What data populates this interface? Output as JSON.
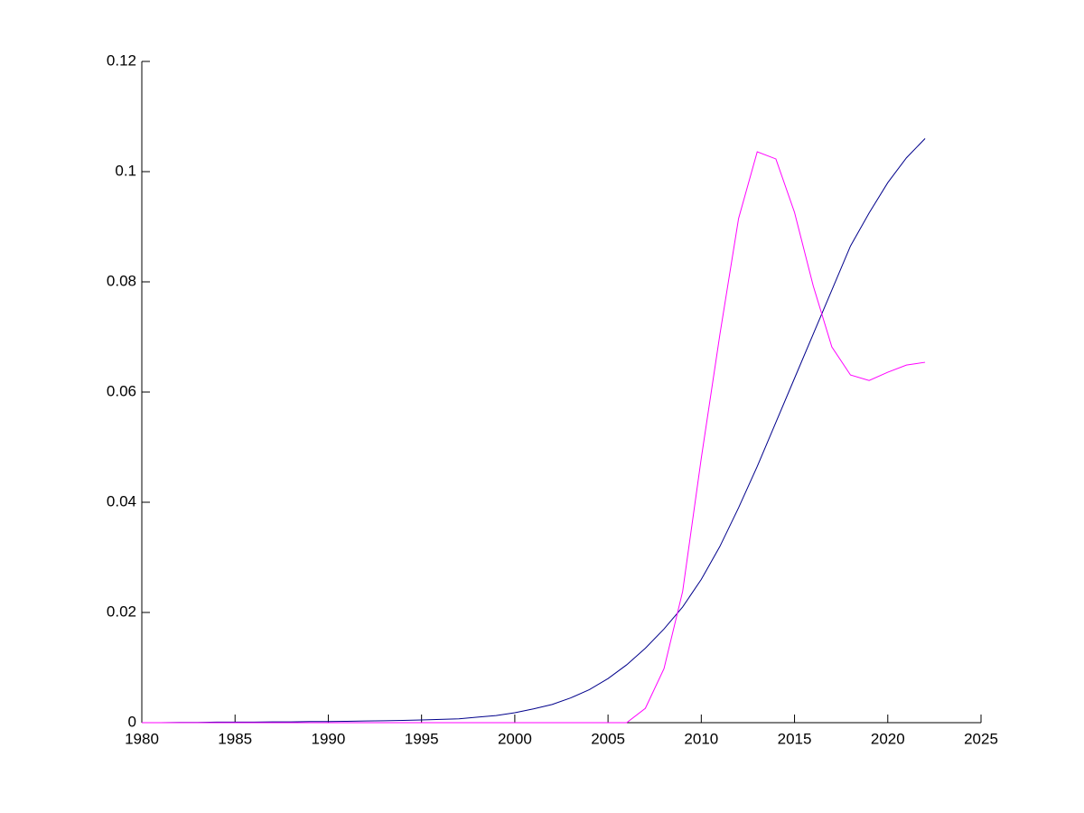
{
  "chart_data": {
    "type": "line",
    "x": [
      1980,
      1981,
      1982,
      1983,
      1984,
      1985,
      1986,
      1987,
      1988,
      1989,
      1990,
      1991,
      1992,
      1993,
      1994,
      1995,
      1996,
      1997,
      1998,
      1999,
      2000,
      2001,
      2002,
      2003,
      2004,
      2005,
      2006,
      2007,
      2008,
      2009,
      2010,
      2011,
      2012,
      2013,
      2014,
      2015,
      2016,
      2017,
      2018,
      2019,
      2020,
      2021,
      2022
    ],
    "series": [
      {
        "color": "#00008b",
        "values": [
          0,
          0,
          5e-05,
          5e-05,
          0.0001,
          0.0001,
          0.0001,
          0.00015,
          0.00015,
          0.0002,
          0.0002,
          0.00025,
          0.0003,
          0.00035,
          0.0004,
          0.0005,
          0.0006,
          0.0007,
          0.001,
          0.0013,
          0.0018,
          0.0025,
          0.0033,
          0.0045,
          0.006,
          0.008,
          0.0105,
          0.0135,
          0.017,
          0.021,
          0.026,
          0.032,
          0.039,
          0.0465,
          0.0545,
          0.0625,
          0.0705,
          0.0785,
          0.0865,
          0.0925,
          0.098,
          0.1025,
          0.106
        ]
      },
      {
        "color": "#ff00ff",
        "values": [
          0,
          0,
          0,
          0,
          0,
          0,
          0,
          0,
          0,
          0,
          0,
          0,
          0,
          0,
          0,
          0,
          0,
          0,
          0,
          0,
          0,
          0,
          0,
          0,
          0,
          0,
          0,
          0.0026,
          0.0098,
          0.0238,
          0.048,
          0.0705,
          0.0915,
          0.1036,
          0.1023,
          0.0926,
          0.0793,
          0.0682,
          0.0631,
          0.0621,
          0.0636,
          0.0649,
          0.0654
        ]
      }
    ],
    "xlim": [
      1980,
      2025
    ],
    "xticks": [
      1980,
      1985,
      1990,
      1995,
      2000,
      2005,
      2010,
      2015,
      2020,
      2025
    ],
    "ylim": [
      0,
      0.12
    ],
    "yticks": [
      0,
      0.02,
      0.04,
      0.06,
      0.08,
      0.1,
      0.12
    ]
  }
}
